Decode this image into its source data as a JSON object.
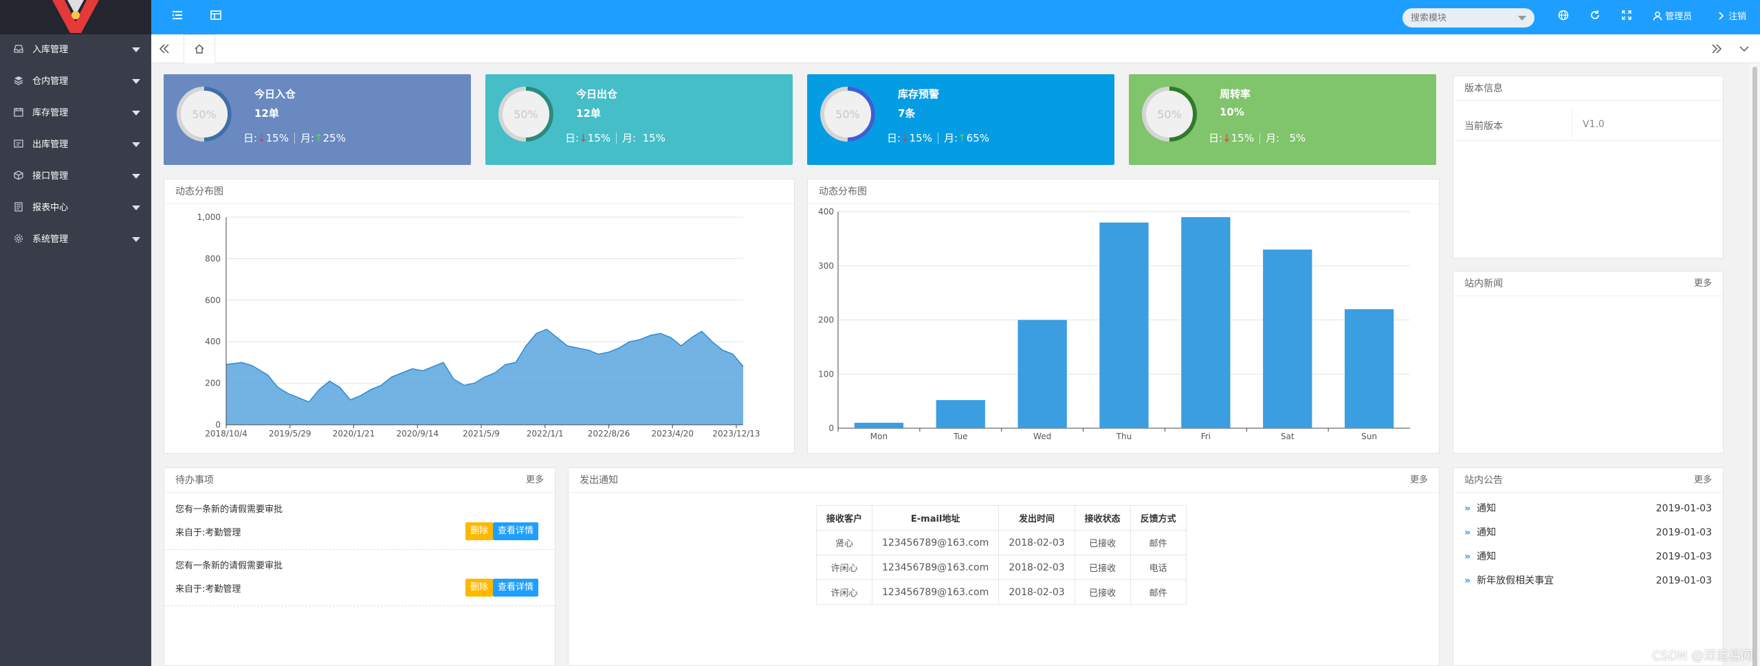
{
  "header": {
    "search_placeholder": "搜索模块",
    "user_label": "管理员",
    "logout_label": "注销"
  },
  "sidebar": {
    "items": [
      {
        "label": "入库管理",
        "icon": "inbox-icon"
      },
      {
        "label": "仓内管理",
        "icon": "layers-icon"
      },
      {
        "label": "库存管理",
        "icon": "calendar-icon"
      },
      {
        "label": "出库管理",
        "icon": "outbox-icon"
      },
      {
        "label": "接口管理",
        "icon": "cube-icon"
      },
      {
        "label": "报表中心",
        "icon": "report-icon"
      },
      {
        "label": "系统管理",
        "icon": "gear-icon"
      }
    ]
  },
  "stats": [
    {
      "title": "今日入仓",
      "value": "12单",
      "day_label": "日:",
      "day_pct": "15%",
      "day_dir": "down",
      "month_label": "月:",
      "month_pct": "25%",
      "month_dir": "up",
      "gauge_pct": 50,
      "gauge_text": "50%",
      "bg": "#6a89c0",
      "ring": "#3f6fa8"
    },
    {
      "title": "今日出仓",
      "value": "12单",
      "day_label": "日:",
      "day_pct": "15%",
      "day_dir": "down",
      "month_label": "月:",
      "month_pct": "15%",
      "month_dir": "none",
      "gauge_pct": 50,
      "gauge_text": "50%",
      "bg": "#45bec8",
      "ring": "#2a8a7e"
    },
    {
      "title": "库存预警",
      "value": "7条",
      "day_label": "日:",
      "day_pct": "15%",
      "day_dir": "down",
      "month_label": "月:",
      "month_pct": "65%",
      "month_dir": "up",
      "gauge_pct": 50,
      "gauge_text": "50%",
      "bg": "#049de4",
      "ring": "#3b5fd6"
    },
    {
      "title": "周转率",
      "value": "10%",
      "day_label": "日:",
      "day_pct": "15%",
      "day_dir": "down",
      "month_label": "月:",
      "month_pct": "5%",
      "month_dir": "none",
      "gauge_pct": 50,
      "gauge_text": "50%",
      "bg": "#80c46b",
      "ring": "#2f7a2b"
    }
  ],
  "colors": {
    "accent": "#1e9fff",
    "sidebar": "#393d49",
    "chart": "#3a9ee0",
    "warn_btn": "#ffb800"
  },
  "version_card": {
    "title": "版本信息",
    "rows": [
      {
        "key": "当前版本",
        "value": "V1.0"
      }
    ]
  },
  "news_card": {
    "title": "站内新闻",
    "more": "更多"
  },
  "line_card": {
    "title": "动态分布图"
  },
  "bar_card": {
    "title": "动态分布图"
  },
  "todo_card": {
    "title": "待办事项",
    "more": "更多",
    "items": [
      {
        "text": "您有一条新的请假需要审批",
        "source": "来自于:考勤管理",
        "delete_label": "删除",
        "detail_label": "查看详情"
      },
      {
        "text": "您有一条新的请假需要审批",
        "source": "来自于:考勤管理",
        "delete_label": "删除",
        "detail_label": "查看详情"
      }
    ]
  },
  "notice_card": {
    "title": "发出通知",
    "more": "更多",
    "columns": [
      "接收客户",
      "E-mail地址",
      "发出时间",
      "接收状态",
      "反馈方式"
    ],
    "rows": [
      [
        "贤心",
        "123456789@163.com",
        "2018-02-03",
        "已接收",
        "邮件"
      ],
      [
        "许闲心",
        "123456789@163.com",
        "2018-02-03",
        "已接收",
        "电话"
      ],
      [
        "许闲心",
        "123456789@163.com",
        "2018-02-03",
        "已接收",
        "邮件"
      ]
    ]
  },
  "announce_card": {
    "title": "站内公告",
    "more": "更多",
    "items": [
      {
        "text": "通知",
        "date": "2019-01-03"
      },
      {
        "text": "通知",
        "date": "2019-01-03"
      },
      {
        "text": "通知",
        "date": "2019-01-03"
      },
      {
        "text": "新年放假相关事宜",
        "date": "2019-01-03"
      }
    ]
  },
  "watermark": "CSDN @深蓝易网",
  "chart_data": [
    {
      "type": "area",
      "title": "",
      "x_tick_labels": [
        "2018/10/4",
        "2019/5/29",
        "2020/1/21",
        "2020/9/14",
        "2021/5/9",
        "2022/1/1",
        "2022/8/26",
        "2023/4/20",
        "2023/12/13"
      ],
      "y_tick_labels": [
        "0",
        "200",
        "400",
        "600",
        "800",
        "1,000"
      ],
      "ylim": [
        0,
        1000
      ],
      "grid": true,
      "series": [
        {
          "x": [
            0,
            0.03,
            0.05,
            0.08,
            0.1,
            0.12,
            0.14,
            0.16,
            0.18,
            0.2,
            0.22,
            0.24,
            0.26,
            0.28,
            0.3,
            0.32,
            0.34,
            0.36,
            0.38,
            0.4,
            0.42,
            0.44,
            0.46,
            0.48,
            0.5,
            0.52,
            0.54,
            0.56,
            0.58,
            0.6,
            0.62,
            0.64,
            0.66,
            0.68,
            0.7,
            0.72,
            0.74,
            0.76,
            0.78,
            0.8,
            0.82,
            0.84,
            0.86,
            0.88,
            0.9,
            0.92,
            0.94,
            0.96,
            0.98,
            1.0
          ],
          "values": [
            290,
            300,
            285,
            240,
            180,
            150,
            130,
            110,
            170,
            210,
            180,
            120,
            140,
            170,
            190,
            230,
            250,
            270,
            260,
            280,
            300,
            220,
            190,
            200,
            230,
            250,
            290,
            300,
            380,
            440,
            460,
            420,
            380,
            370,
            360,
            340,
            350,
            370,
            400,
            410,
            430,
            440,
            420,
            380,
            420,
            450,
            400,
            360,
            340,
            280
          ]
        }
      ]
    },
    {
      "type": "bar",
      "title": "",
      "categories": [
        "Mon",
        "Tue",
        "Wed",
        "Thu",
        "Fri",
        "Sat",
        "Sun"
      ],
      "values": [
        10,
        52,
        200,
        380,
        390,
        330,
        220
      ],
      "y_tick_labels": [
        "0",
        "100",
        "200",
        "300",
        "400"
      ],
      "ylim": [
        0,
        400
      ],
      "grid": true
    }
  ]
}
